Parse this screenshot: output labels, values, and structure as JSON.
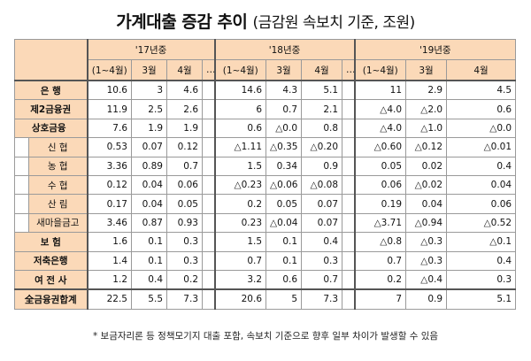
{
  "title": {
    "main": "가계대출 증감 추이",
    "sub": "(금감원 속보치 기준, 조원)"
  },
  "columns": {
    "years": [
      "'17년중",
      "'18년중",
      "'19년중"
    ],
    "periods": [
      "(1~4월)",
      "3월",
      "4월",
      "…"
    ],
    "periods_last": [
      "(1~4월)",
      "3월",
      "4월"
    ]
  },
  "rows": [
    {
      "label": "은 행",
      "v": [
        "10.6",
        "3",
        "4.6",
        "",
        "14.6",
        "4.3",
        "5.1",
        "",
        "11",
        "2.9",
        "4.5"
      ]
    },
    {
      "label": "제2금융권",
      "v": [
        "11.9",
        "2.5",
        "2.6",
        "",
        "6",
        "0.7",
        "2.1",
        "",
        "△4.0",
        "△2.0",
        "0.6"
      ]
    },
    {
      "label": "상호금융",
      "v": [
        "7.6",
        "1.9",
        "1.9",
        "",
        "0.6",
        "△0.0",
        "0.8",
        "",
        "△4.0",
        "△1.0",
        "△0.0"
      ]
    },
    {
      "label": "신 협",
      "v": [
        "0.53",
        "0.07",
        "0.12",
        "",
        "△1.11",
        "△0.35",
        "△0.20",
        "",
        "△0.60",
        "△0.12",
        "△0.01"
      ]
    },
    {
      "label": "농 협",
      "v": [
        "3.36",
        "0.89",
        "0.7",
        "",
        "1.5",
        "0.34",
        "0.9",
        "",
        "0.05",
        "0.02",
        "0.4"
      ]
    },
    {
      "label": "수 협",
      "v": [
        "0.12",
        "0.04",
        "0.06",
        "",
        "△0.23",
        "△0.06",
        "△0.08",
        "",
        "0.06",
        "△0.02",
        "0.04"
      ]
    },
    {
      "label": "산 림",
      "v": [
        "0.17",
        "0.04",
        "0.05",
        "",
        "0.2",
        "0.05",
        "0.07",
        "",
        "0.19",
        "0.04",
        "0.06"
      ]
    },
    {
      "label": "새마을금고",
      "v": [
        "3.46",
        "0.87",
        "0.93",
        "",
        "0.23",
        "△0.04",
        "0.07",
        "",
        "△3.71",
        "△0.94",
        "△0.52"
      ]
    },
    {
      "label": "보 험",
      "v": [
        "1.6",
        "0.1",
        "0.3",
        "",
        "1.5",
        "0.1",
        "0.4",
        "",
        "△0.8",
        "△0.3",
        "△0.1"
      ]
    },
    {
      "label": "저축은행",
      "v": [
        "1.4",
        "0.1",
        "0.3",
        "",
        "0.7",
        "0.1",
        "0.3",
        "",
        "0.7",
        "△0.3",
        "0.4"
      ]
    },
    {
      "label": "여 전 사",
      "v": [
        "1.2",
        "0.4",
        "0.2",
        "",
        "3.2",
        "0.6",
        "0.7",
        "",
        "0.2",
        "△0.4",
        "0.3"
      ]
    },
    {
      "label": "全금융권합계",
      "v": [
        "22.5",
        "5.5",
        "7.3",
        "",
        "20.6",
        "5",
        "7.3",
        "",
        "7",
        "0.9",
        "5.1"
      ]
    }
  ],
  "note": "* 보금자리론 등 정책모기지 대출 포함, 속보치 기준으로 향후 일부 차이가 발생할 수 있음"
}
